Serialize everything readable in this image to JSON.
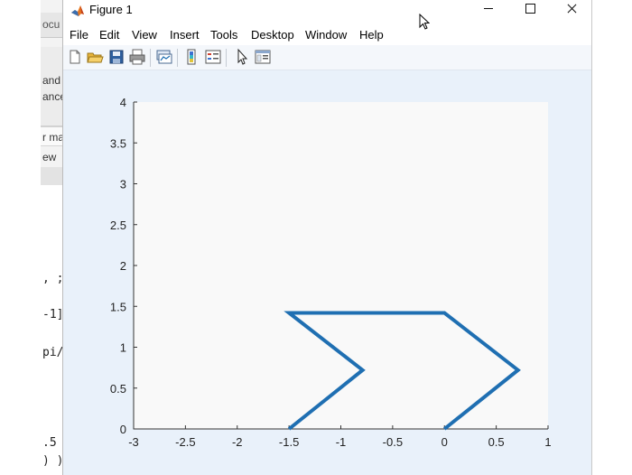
{
  "background_app": {
    "tab_label": "ocu",
    "panel_lines": [
      "and",
      "ance"
    ],
    "field_text": "r ma",
    "field2_text": "ew",
    "code_lines": [
      ", ;",
      "-1]",
      "pi/",
      ".5",
      ") )"
    ]
  },
  "window": {
    "title": "Figure 1",
    "icon": "matlab-icon"
  },
  "menu": [
    "File",
    "Edit",
    "View",
    "Insert",
    "Tools",
    "Desktop",
    "Window",
    "Help"
  ],
  "toolbar": [
    "new-figure-icon",
    "open-file-icon",
    "save-icon",
    "print-icon",
    "link-plot-icon",
    "insert-colorbar-icon",
    "insert-legend-icon",
    "edit-plot-icon",
    "property-inspector-icon"
  ],
  "colors": {
    "line": "#1f6fb2",
    "axes_bg": "#f9f9f9",
    "figure_bg": "#e9f1fa"
  },
  "chart_data": {
    "type": "line",
    "title": "",
    "xlabel": "",
    "ylabel": "",
    "xlim": [
      -3,
      1
    ],
    "ylim": [
      0,
      4
    ],
    "xticks": [
      -3,
      -2.5,
      -2,
      -1.5,
      -1,
      -0.5,
      0,
      0.5,
      1
    ],
    "yticks": [
      0,
      0.5,
      1,
      1.5,
      2,
      2.5,
      3,
      3.5,
      4
    ],
    "xtick_labels": [
      "-3",
      "-2.5",
      "-2",
      "-1.5",
      "-1",
      "-0.5",
      "0",
      "0.5",
      "1"
    ],
    "ytick_labels": [
      "0",
      "0.5",
      "1",
      "1.5",
      "2",
      "2.5",
      "3",
      "3.5",
      "4"
    ],
    "grid": false,
    "series": [
      {
        "x": [
          -1.5,
          -0.79,
          -1.5,
          0,
          0.71,
          0
        ],
        "y": [
          0,
          0.72,
          1.42,
          1.42,
          0.72,
          0
        ]
      }
    ]
  }
}
